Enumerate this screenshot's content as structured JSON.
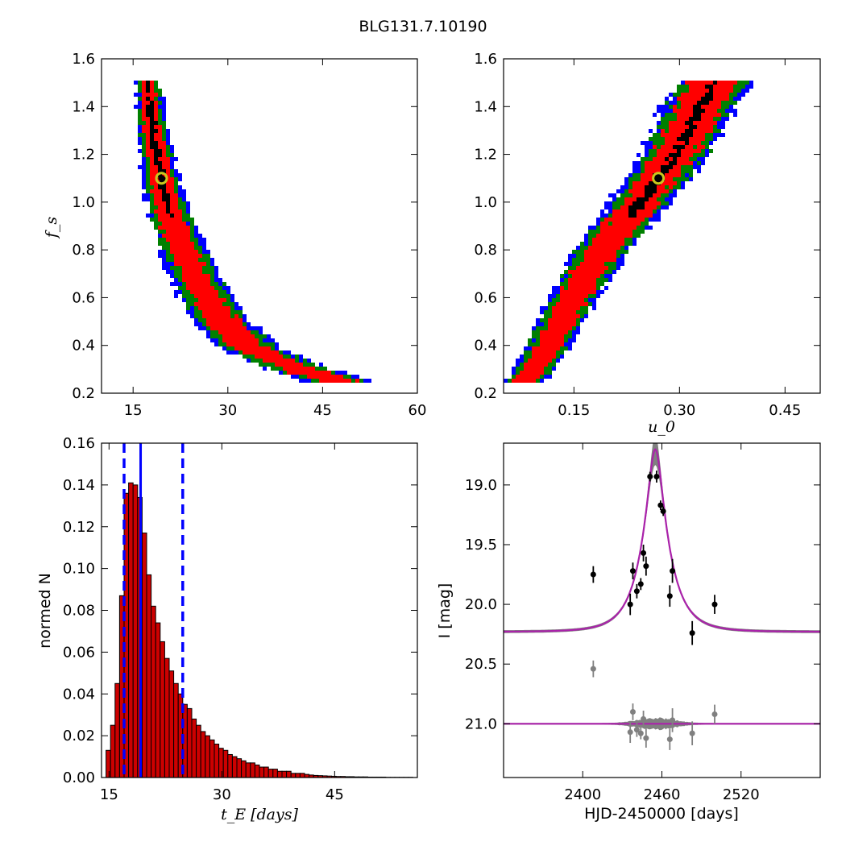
{
  "figure": {
    "title": "BLG131.7.10190"
  },
  "colors": {
    "sigma1": "#ff0000",
    "sigma2": "#008000",
    "sigma3": "#0000ff",
    "best": "#000000",
    "marker_ring": "#c8c81e",
    "hist_fill": "#cc0000",
    "model": "#aa22aa",
    "model_band": "#808080",
    "data_points": "#000000",
    "residuals": "#808080",
    "tE_lines": "#0000ff"
  },
  "chart_data": [
    {
      "type": "heatmap",
      "panel": "tE_vs_fs",
      "xlabel": "",
      "ylabel": "f_s",
      "xlim": [
        10,
        60
      ],
      "ylim": [
        0.2,
        1.6
      ],
      "xticks": [
        "15",
        "30",
        "45",
        "60"
      ],
      "yticks": [
        "0.2",
        "0.4",
        "0.6",
        "0.8",
        "1.0",
        "1.2",
        "1.4",
        "1.6"
      ],
      "ridge_fs": [
        0.25,
        0.3,
        0.35,
        0.4,
        0.5,
        0.6,
        0.7,
        0.8,
        0.9,
        1.0,
        1.1,
        1.2,
        1.3,
        1.4,
        1.5
      ],
      "ridge_tE": [
        48,
        42,
        37,
        33,
        29,
        26.5,
        24.5,
        22.8,
        21.2,
        20,
        19.2,
        18.4,
        17.8,
        17.4,
        17.0
      ],
      "best_fit": {
        "tE": 19.5,
        "fs": 1.1
      }
    },
    {
      "type": "heatmap",
      "panel": "u0_vs_fs",
      "xlabel": "u_0",
      "ylabel": "",
      "xlim": [
        0.05,
        0.5
      ],
      "ylim": [
        0.2,
        1.6
      ],
      "xticks": [
        "0.15",
        "0.30",
        "0.45"
      ],
      "yticks": [
        "0.2",
        "0.4",
        "0.6",
        "0.8",
        "1.0",
        "1.2",
        "1.4",
        "1.6"
      ],
      "ridge_fs": [
        0.28,
        0.4,
        0.6,
        0.8,
        1.0,
        1.2,
        1.4,
        1.5
      ],
      "ridge_u0": [
        0.083,
        0.11,
        0.145,
        0.185,
        0.24,
        0.29,
        0.325,
        0.345
      ],
      "best_fit": {
        "u0": 0.27,
        "fs": 1.1
      }
    },
    {
      "type": "bar",
      "panel": "tE_histogram",
      "xlabel": "t_E [days]",
      "ylabel": "normed N",
      "xlim": [
        14,
        56
      ],
      "ylim": [
        0,
        0.16
      ],
      "xticks": [
        "15",
        "30",
        "45"
      ],
      "yticks": [
        "0.00",
        "0.02",
        "0.04",
        "0.06",
        "0.08",
        "0.10",
        "0.12",
        "0.14",
        "0.16"
      ],
      "bin_width": 0.6,
      "bin_start": 14.6,
      "values": [
        0.013,
        0.025,
        0.045,
        0.087,
        0.136,
        0.141,
        0.14,
        0.134,
        0.117,
        0.097,
        0.082,
        0.074,
        0.065,
        0.057,
        0.051,
        0.045,
        0.04,
        0.035,
        0.033,
        0.028,
        0.025,
        0.022,
        0.02,
        0.018,
        0.016,
        0.014,
        0.013,
        0.011,
        0.01,
        0.009,
        0.008,
        0.007,
        0.007,
        0.006,
        0.005,
        0.005,
        0.004,
        0.004,
        0.003,
        0.003,
        0.003,
        0.002,
        0.002,
        0.002,
        0.0015,
        0.0012,
        0.001,
        0.0009,
        0.0008,
        0.0007,
        0.0006,
        0.0005,
        0.0005,
        0.0004,
        0.0004,
        0.0003,
        0.0003,
        0.0003,
        0.0002,
        0.0002,
        0.0002,
        0.0002,
        0.0001,
        0.0001,
        0.0001,
        0.0001,
        0.0001,
        0.0001
      ],
      "median": 19.2,
      "lower": 17.0,
      "upper": 24.8
    },
    {
      "type": "scatter",
      "panel": "light_curve",
      "xlabel": "HJD-2450000 [days]",
      "ylabel": "I [mag]",
      "xlim": [
        2340,
        2580
      ],
      "ylim": [
        21.45,
        18.65
      ],
      "xticks": [
        "2400",
        "2460",
        "2520"
      ],
      "yticks": [
        "19.0",
        "19.5",
        "20.0",
        "20.5",
        "21.0"
      ],
      "model": {
        "t0": 2455.0,
        "tE": 19.5,
        "u0": 0.27,
        "fs": 1.1,
        "baseline": 20.23
      },
      "residual_baseline": 21.0,
      "points": [
        {
          "t": 2408,
          "mag": 19.75,
          "err": 0.07
        },
        {
          "t": 2436,
          "mag": 20.0,
          "err": 0.09
        },
        {
          "t": 2438,
          "mag": 19.72,
          "err": 0.07
        },
        {
          "t": 2441,
          "mag": 19.89,
          "err": 0.06
        },
        {
          "t": 2444,
          "mag": 19.83,
          "err": 0.05
        },
        {
          "t": 2446,
          "mag": 19.57,
          "err": 0.07
        },
        {
          "t": 2448,
          "mag": 19.68,
          "err": 0.08
        },
        {
          "t": 2451,
          "mag": 18.93,
          "err": 0.04
        },
        {
          "t": 2456,
          "mag": 18.93,
          "err": 0.05
        },
        {
          "t": 2459,
          "mag": 19.17,
          "err": 0.04
        },
        {
          "t": 2461,
          "mag": 19.22,
          "err": 0.04
        },
        {
          "t": 2466,
          "mag": 19.93,
          "err": 0.09
        },
        {
          "t": 2468,
          "mag": 19.72,
          "err": 0.1
        },
        {
          "t": 2483,
          "mag": 20.24,
          "err": 0.1
        },
        {
          "t": 2500,
          "mag": 20.0,
          "err": 0.08
        }
      ],
      "residual_points": [
        {
          "t": 2408,
          "mag": 20.54,
          "err": 0.07
        },
        {
          "t": 2436,
          "mag": 21.07,
          "err": 0.09
        },
        {
          "t": 2438,
          "mag": 20.9,
          "err": 0.07
        },
        {
          "t": 2441,
          "mag": 21.05,
          "err": 0.06
        },
        {
          "t": 2444,
          "mag": 21.08,
          "err": 0.05
        },
        {
          "t": 2446,
          "mag": 20.96,
          "err": 0.07
        },
        {
          "t": 2448,
          "mag": 21.12,
          "err": 0.08
        },
        {
          "t": 2466,
          "mag": 21.13,
          "err": 0.09
        },
        {
          "t": 2468,
          "mag": 20.97,
          "err": 0.1
        },
        {
          "t": 2483,
          "mag": 21.08,
          "err": 0.1
        },
        {
          "t": 2500,
          "mag": 20.92,
          "err": 0.08
        }
      ]
    }
  ]
}
